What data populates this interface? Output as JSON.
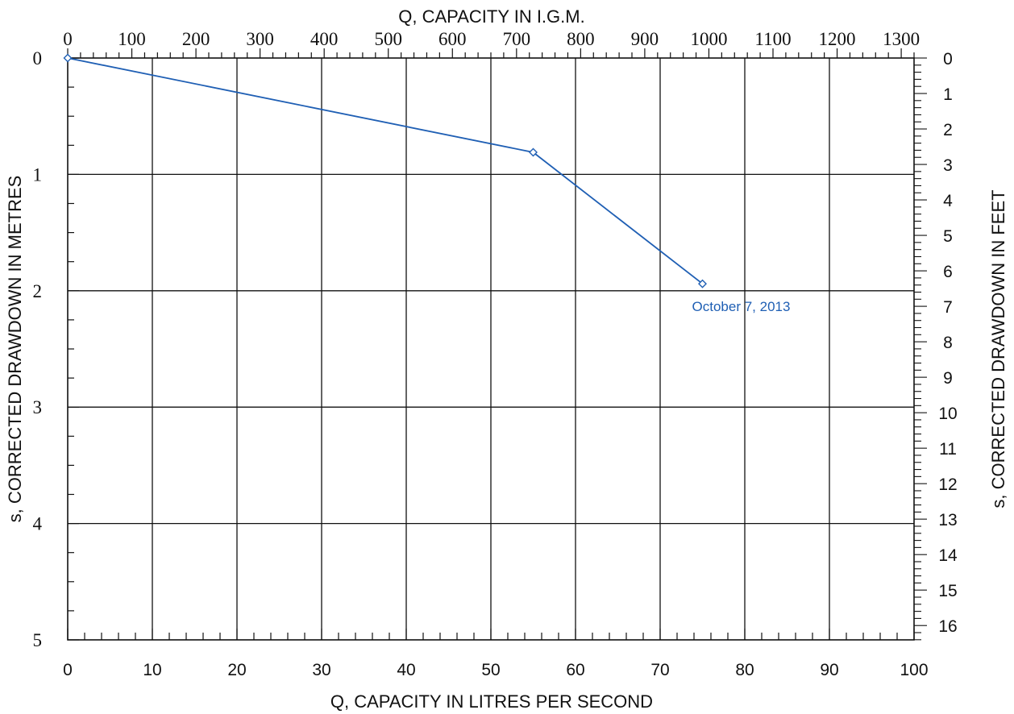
{
  "chart_data": {
    "type": "line",
    "title": "",
    "xlabel": "Q, CAPACITY IN LITRES PER SECOND",
    "x2label": "Q, CAPACITY IN  I.G.M.",
    "ylabel": "s, CORRECTED DRAWDOWN IN METRES",
    "y2label": "s, CORRECTED DRAWDOWN IN FEET",
    "xlim": [
      0,
      100
    ],
    "x2lim": [
      0,
      1320
    ],
    "ylim": [
      0,
      5
    ],
    "y2lim": [
      0,
      16.404
    ],
    "y_inverted": true,
    "grid": true,
    "x_ticks": [
      "0",
      "10",
      "20",
      "30",
      "40",
      "50",
      "60",
      "70",
      "80",
      "90",
      "100"
    ],
    "x2_ticks": [
      "0",
      "100",
      "200",
      "300",
      "400",
      "500",
      "600",
      "700",
      "800",
      "900",
      "1000",
      "1100",
      "1200",
      "1300"
    ],
    "y_ticks": [
      "0",
      "1",
      "2",
      "3",
      "4",
      "5"
    ],
    "y2_ticks": [
      "0",
      "1",
      "2",
      "3",
      "4",
      "5",
      "6",
      "7",
      "8",
      "9",
      "10",
      "11",
      "12",
      "13",
      "14",
      "15",
      "16"
    ],
    "series": [
      {
        "x": [
          0,
          55,
          75
        ],
        "y": [
          0,
          0.81,
          1.94
        ],
        "color": "#1f5fb4",
        "marker": "diamond"
      }
    ],
    "annotations": [
      {
        "text": "October 7, 2013",
        "x": 75,
        "y": 1.94
      }
    ]
  },
  "colors": {
    "grid": "#111111",
    "series": "#1f5fb4"
  }
}
